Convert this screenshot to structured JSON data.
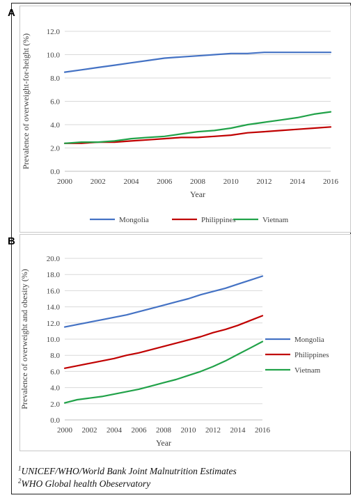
{
  "chart_data": [
    {
      "panel_label": "A",
      "type": "line",
      "x": [
        2000,
        2001,
        2002,
        2003,
        2004,
        2005,
        2006,
        2007,
        2008,
        2009,
        2010,
        2011,
        2012,
        2013,
        2014,
        2015,
        2016
      ],
      "series": [
        {
          "name": "Mongolia",
          "color": "#4472C4",
          "values": [
            8.5,
            8.7,
            8.9,
            9.1,
            9.3,
            9.5,
            9.7,
            9.8,
            9.9,
            10.0,
            10.1,
            10.1,
            10.2,
            10.2,
            10.2,
            10.2,
            10.2
          ]
        },
        {
          "name": "Philippines",
          "color": "#C00000",
          "values": [
            2.4,
            2.4,
            2.5,
            2.5,
            2.6,
            2.7,
            2.8,
            2.9,
            2.9,
            3.0,
            3.1,
            3.3,
            3.4,
            3.5,
            3.6,
            3.7,
            3.8
          ]
        },
        {
          "name": "Vietnam",
          "color": "#21A249",
          "values": [
            2.4,
            2.5,
            2.5,
            2.6,
            2.8,
            2.9,
            3.0,
            3.2,
            3.4,
            3.5,
            3.7,
            4.0,
            4.2,
            4.4,
            4.6,
            4.9,
            5.1
          ]
        }
      ],
      "xlabel": "Year",
      "ylabel": "Prevalence of overweight-for-height (%)",
      "ylim": [
        0,
        12
      ],
      "yticks": [
        "0.0",
        "2.0",
        "4.0",
        "6.0",
        "8.0",
        "10.0",
        "12.0"
      ],
      "xticks": [
        "2000",
        "2002",
        "2004",
        "2006",
        "2008",
        "2010",
        "2012",
        "2014",
        "2016"
      ],
      "grid": "horizontal",
      "legend": "bottom"
    },
    {
      "panel_label": "B",
      "type": "line",
      "x": [
        2000,
        2001,
        2002,
        2003,
        2004,
        2005,
        2006,
        2007,
        2008,
        2009,
        2010,
        2011,
        2012,
        2013,
        2014,
        2015,
        2016
      ],
      "series": [
        {
          "name": "Mongolia",
          "color": "#4472C4",
          "values": [
            11.5,
            11.8,
            12.1,
            12.4,
            12.7,
            13.0,
            13.4,
            13.8,
            14.2,
            14.6,
            15.0,
            15.5,
            15.9,
            16.3,
            16.8,
            17.3,
            17.8
          ]
        },
        {
          "name": "Philippines",
          "color": "#C00000",
          "values": [
            6.4,
            6.7,
            7.0,
            7.3,
            7.6,
            8.0,
            8.3,
            8.7,
            9.1,
            9.5,
            9.9,
            10.3,
            10.8,
            11.2,
            11.7,
            12.3,
            12.9
          ]
        },
        {
          "name": "Vietnam",
          "color": "#21A249",
          "values": [
            2.1,
            2.5,
            2.7,
            2.9,
            3.2,
            3.5,
            3.8,
            4.2,
            4.6,
            5.0,
            5.5,
            6.0,
            6.6,
            7.3,
            8.1,
            8.9,
            9.7
          ]
        }
      ],
      "xlabel": "Year",
      "ylabel": "Prevalence of overweight and obesity (%)",
      "ylim": [
        0,
        20
      ],
      "yticks": [
        "0.0",
        "2.0",
        "4.0",
        "6.0",
        "8.0",
        "10.0",
        "12.0",
        "14.0",
        "16.0",
        "18.0",
        "20.0"
      ],
      "xticks": [
        "2000",
        "2002",
        "2004",
        "2006",
        "2008",
        "2010",
        "2012",
        "2014",
        "2016"
      ],
      "grid": "horizontal",
      "legend": "right"
    }
  ],
  "footnotes": [
    {
      "mark": "1",
      "text": "UNICEF/WHO/World Bank Joint Malnutrition Estimates"
    },
    {
      "mark": "2",
      "text": "WHO Global health Obeservatory"
    }
  ]
}
